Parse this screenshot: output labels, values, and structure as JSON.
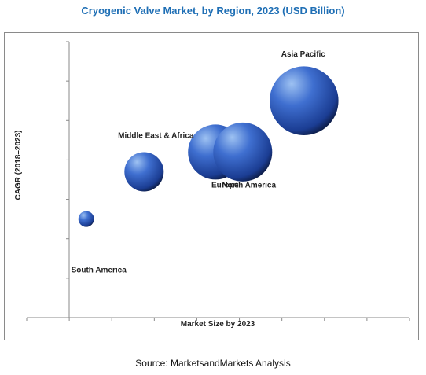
{
  "title": "Cryogenic Valve Market, by Region, 2023 (USD Billion)",
  "source": "Source: MarketsandMarkets Analysis",
  "colors": {
    "title": "#1f6fb5",
    "bubble_light": "#9ec2f2",
    "bubble_mid": "#3f6fd0",
    "bubble_dark": "#0d1c45",
    "axis": "#8a8a8a"
  },
  "chart_data": {
    "type": "scatter",
    "variant": "bubble",
    "title": "Cryogenic Valve Market, by Region, 2023 (USD Billion)",
    "xlabel": "Market Size by 2023",
    "ylabel": "CAGR (2018–2023)",
    "xlim": [
      0,
      10
    ],
    "ylim": [
      0,
      7
    ],
    "grid": false,
    "legend": "none",
    "tick_labels_shown": false,
    "points": [
      {
        "label": "South America",
        "x": 0.5,
        "y": 2.5,
        "size": 0.8
      },
      {
        "label": "Middle East  & Africa",
        "x": 2.2,
        "y": 3.7,
        "size": 2.0
      },
      {
        "label": "Europe",
        "x": 4.3,
        "y": 4.2,
        "size": 2.8
      },
      {
        "label": "North America",
        "x": 5.1,
        "y": 4.2,
        "size": 3.0
      },
      {
        "label": "Asia Pacific",
        "x": 6.9,
        "y": 5.5,
        "size": 3.5
      }
    ]
  }
}
